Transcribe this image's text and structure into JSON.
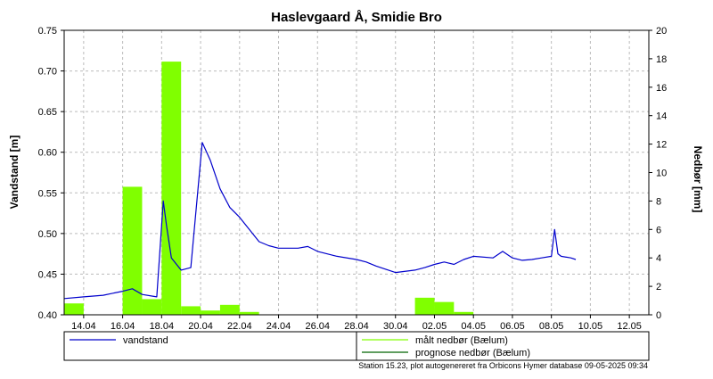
{
  "chart_data": {
    "type": "line",
    "title": "Haslevgaard Å, Smidie Bro",
    "ylabel_left": "Vandstand [m]",
    "ylabel_right": "Nedbør [mm]",
    "ylim_left": [
      0.4,
      0.75
    ],
    "ylim_right": [
      0,
      20
    ],
    "yticks_left": [
      "0.40",
      "0.45",
      "0.50",
      "0.55",
      "0.60",
      "0.65",
      "0.70",
      "0.75"
    ],
    "yticks_right": [
      "0",
      "2",
      "4",
      "6",
      "8",
      "10",
      "12",
      "14",
      "16",
      "18",
      "20"
    ],
    "x_range": [
      "2025-04-13",
      "2025-05-13"
    ],
    "x_ticks": [
      "14.04",
      "16.04",
      "18.04",
      "20.04",
      "22.04",
      "24.04",
      "26.04",
      "28.04",
      "30.04",
      "02.05",
      "04.05",
      "06.05",
      "08.05",
      "10.05",
      "12.05"
    ],
    "grid": true,
    "colors": {
      "vandstand": "#0000cc",
      "rain_bar": "#80ff00",
      "rain_forecast": "#006400"
    },
    "series": [
      {
        "name": "vandstand",
        "axis": "left",
        "kind": "line",
        "points": [
          [
            "2025-04-13",
            0.42
          ],
          [
            "2025-04-14",
            0.422
          ],
          [
            "2025-04-15",
            0.424
          ],
          [
            "2025-04-16",
            0.429
          ],
          [
            "2025-04-16T12",
            0.432
          ],
          [
            "2025-04-17",
            0.425
          ],
          [
            "2025-04-17T12",
            0.423
          ],
          [
            "2025-04-17T18",
            0.422
          ],
          [
            "2025-04-18T02",
            0.54
          ],
          [
            "2025-04-18T06",
            0.51
          ],
          [
            "2025-04-18T12",
            0.47
          ],
          [
            "2025-04-19",
            0.455
          ],
          [
            "2025-04-19T12",
            0.458
          ],
          [
            "2025-04-20T02",
            0.612
          ],
          [
            "2025-04-20T12",
            0.59
          ],
          [
            "2025-04-21",
            0.555
          ],
          [
            "2025-04-21T12",
            0.532
          ],
          [
            "2025-04-22",
            0.52
          ],
          [
            "2025-04-22T12",
            0.505
          ],
          [
            "2025-04-23",
            0.49
          ],
          [
            "2025-04-23T12",
            0.485
          ],
          [
            "2025-04-24",
            0.482
          ],
          [
            "2025-04-25",
            0.482
          ],
          [
            "2025-04-25T12",
            0.484
          ],
          [
            "2025-04-26",
            0.478
          ],
          [
            "2025-04-27",
            0.472
          ],
          [
            "2025-04-28",
            0.468
          ],
          [
            "2025-04-28T12",
            0.465
          ],
          [
            "2025-04-29",
            0.46
          ],
          [
            "2025-04-30",
            0.452
          ],
          [
            "2025-05-01",
            0.455
          ],
          [
            "2025-05-01T12",
            0.458
          ],
          [
            "2025-05-02",
            0.462
          ],
          [
            "2025-05-02T12",
            0.465
          ],
          [
            "2025-05-03",
            0.462
          ],
          [
            "2025-05-03T12",
            0.468
          ],
          [
            "2025-05-04",
            0.472
          ],
          [
            "2025-05-05",
            0.47
          ],
          [
            "2025-05-05T12",
            0.478
          ],
          [
            "2025-05-06",
            0.47
          ],
          [
            "2025-05-06T12",
            0.467
          ],
          [
            "2025-05-07",
            0.468
          ],
          [
            "2025-05-07T12",
            0.47
          ],
          [
            "2025-05-08",
            0.472
          ],
          [
            "2025-05-08T04",
            0.505
          ],
          [
            "2025-05-08T08",
            0.475
          ],
          [
            "2025-05-08T12",
            0.472
          ],
          [
            "2025-05-09",
            0.47
          ],
          [
            "2025-05-09T06",
            0.468
          ]
        ]
      },
      {
        "name": "målt nedbør (Bælum)",
        "axis": "right",
        "kind": "bar",
        "bar_days": 1,
        "points": [
          [
            "2025-04-13",
            0.8
          ],
          [
            "2025-04-16",
            9.0
          ],
          [
            "2025-04-17",
            1.1
          ],
          [
            "2025-04-18",
            17.8
          ],
          [
            "2025-04-19",
            0.6
          ],
          [
            "2025-04-20",
            0.3
          ],
          [
            "2025-04-21",
            0.7
          ],
          [
            "2025-04-22",
            0.2
          ],
          [
            "2025-05-01",
            1.2
          ],
          [
            "2025-05-02",
            0.9
          ],
          [
            "2025-05-03",
            0.2
          ]
        ]
      },
      {
        "name": "prognose nedbør (Bælum)",
        "axis": "right",
        "kind": "bar",
        "points": []
      }
    ],
    "footer": "Station 15.23, plot autogenereret fra Orbicons Hymer database 09-05-2025 09:34"
  }
}
